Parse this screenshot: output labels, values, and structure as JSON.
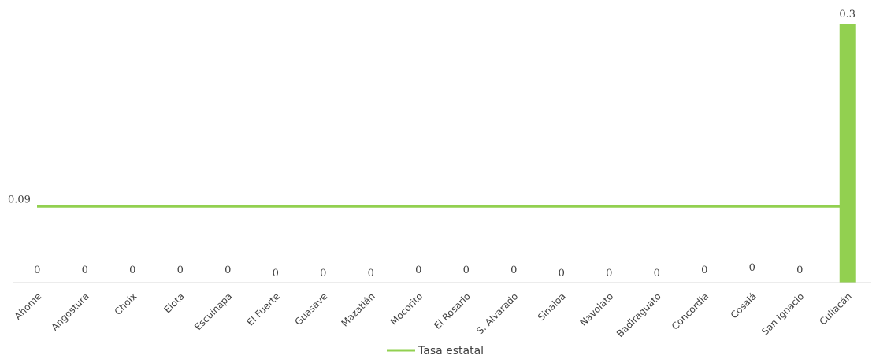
{
  "chart_data": {
    "type": "bar",
    "categories": [
      "Ahome",
      "Angostura",
      "Choix",
      "Elota",
      "Escuinapa",
      "El Fuerte",
      "Guasave",
      "Mazatlán",
      "Mocorito",
      "El Rosario",
      "S. Alvarado",
      "Sinaloa",
      "Navolato",
      "Badiraguato",
      "Concordia",
      "Cosalá",
      "San Ignacio",
      "Culiacán"
    ],
    "values": [
      0,
      0,
      0,
      0,
      0,
      0,
      0,
      0,
      0,
      0,
      0,
      0,
      0,
      0,
      0,
      0,
      0,
      0.3
    ],
    "value_labels": [
      "0",
      "0",
      "0",
      "0",
      "0",
      "0",
      "0",
      "0",
      "0",
      "0",
      "0",
      "0",
      "0",
      "0",
      "0",
      "0",
      "0",
      "0.3"
    ],
    "reference_line": {
      "name": "Tasa estatal",
      "value": 0.09,
      "label": "0.09"
    },
    "ylim": [
      0,
      0.3
    ],
    "grid": false,
    "legend_position": "bottom-center",
    "colors": {
      "bar": "#92d050",
      "line": "#92d050",
      "axis": "#d9d9d9",
      "text": "#404040"
    }
  }
}
